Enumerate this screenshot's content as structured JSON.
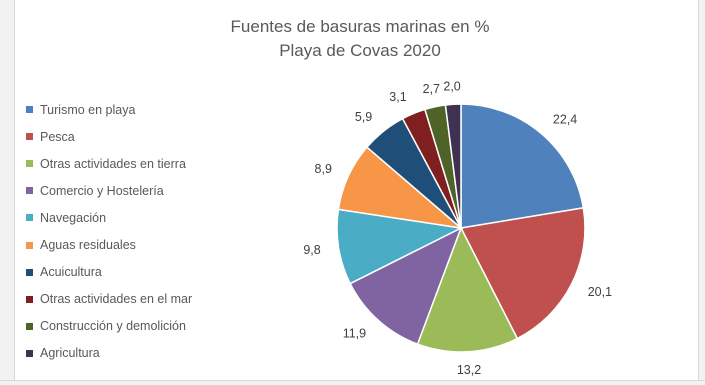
{
  "chart_data": {
    "type": "pie",
    "title": "Fuentes de basuras marinas en %",
    "subtitle": "Playa de Covas 2020",
    "legend_position": "left",
    "slices": [
      {
        "label": "Turismo en playa",
        "value": 22.4,
        "display": "22,4",
        "color": "#4f81bd"
      },
      {
        "label": "Pesca",
        "value": 20.1,
        "display": "20,1",
        "color": "#c0504d"
      },
      {
        "label": "Otras actividades en tierra",
        "value": 13.2,
        "display": "13,2",
        "color": "#9bbb59"
      },
      {
        "label": "Comercio y Hostelería",
        "value": 11.9,
        "display": "11,9",
        "color": "#8064a2"
      },
      {
        "label": "Navegación",
        "value": 9.8,
        "display": "9,8",
        "color": "#4bacc6"
      },
      {
        "label": "Aguas residuales",
        "value": 8.9,
        "display": "8,9",
        "color": "#f79646"
      },
      {
        "label": "Acuicultura",
        "value": 5.9,
        "display": "5,9",
        "color": "#1f4e79"
      },
      {
        "label": "Otras actividades en el mar",
        "value": 3.1,
        "display": "3,1",
        "color": "#7f1f1f"
      },
      {
        "label": "Construcción y demolición",
        "value": 2.7,
        "display": "2,7",
        "color": "#4f6228"
      },
      {
        "label": "Agricultura",
        "value": 2.0,
        "display": "2,0",
        "color": "#3f3151"
      }
    ]
  }
}
